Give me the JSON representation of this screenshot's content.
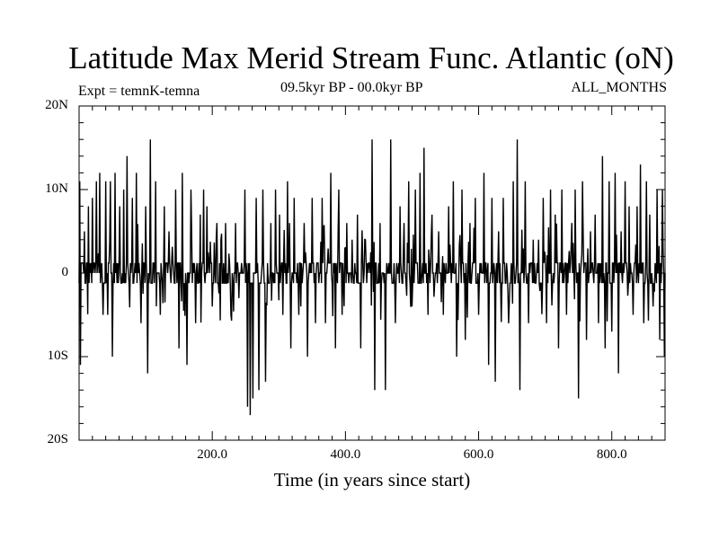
{
  "chart_data": {
    "type": "line",
    "title": "Latitude Max Merid Stream Func. Atlantic (oN)",
    "subtitle_left": "Expt = temnK-temna",
    "subtitle_center": "09.5kyr BP - 00.0kyr BP",
    "subtitle_right": "ALL_MONTHS",
    "xlabel": "Time (in years since start)",
    "ylabel": "",
    "xlim": [
      0,
      880
    ],
    "ylim": [
      -20,
      20
    ],
    "x_ticks": [
      200,
      400,
      600,
      800
    ],
    "x_tick_labels": [
      "200.0",
      "400.0",
      "600.0",
      "800.0"
    ],
    "y_ticks": [
      20,
      10,
      0,
      -10,
      -20
    ],
    "y_tick_labels": [
      "20N",
      "10N",
      "0",
      "10S",
      "20S"
    ],
    "grid": false,
    "legend": "none",
    "series": [
      {
        "color": "#000000",
        "peaks": [
          [
            1,
            11
          ],
          [
            2,
            -11
          ],
          [
            8,
            5
          ],
          [
            14,
            8
          ],
          [
            20,
            9
          ],
          [
            26,
            11
          ],
          [
            31,
            12
          ],
          [
            36,
            -5
          ],
          [
            40,
            11
          ],
          [
            43,
            -5
          ],
          [
            47,
            11
          ],
          [
            50,
            -10
          ],
          [
            54,
            12
          ],
          [
            61,
            8
          ],
          [
            67,
            10
          ],
          [
            72,
            14
          ],
          [
            80,
            9
          ],
          [
            86,
            12
          ],
          [
            93,
            -6
          ],
          [
            100,
            8
          ],
          [
            103,
            -12
          ],
          [
            107,
            16
          ],
          [
            115,
            11
          ],
          [
            122,
            -5
          ],
          [
            128,
            8
          ],
          [
            135,
            5
          ],
          [
            145,
            10
          ],
          [
            150,
            -9
          ],
          [
            155,
            12
          ],
          [
            162,
            -11
          ],
          [
            168,
            10
          ],
          [
            175,
            -6
          ],
          [
            182,
            7
          ],
          [
            187,
            10
          ],
          [
            192,
            8
          ],
          [
            200,
            -4
          ],
          [
            207,
            6
          ],
          [
            213,
            4
          ],
          [
            220,
            6
          ],
          [
            228,
            -5
          ],
          [
            235,
            6
          ],
          [
            240,
            -3
          ],
          [
            249,
            10
          ],
          [
            253,
            -16
          ],
          [
            257,
            -17
          ],
          [
            261,
            -15
          ],
          [
            266,
            9
          ],
          [
            270,
            -14
          ],
          [
            276,
            10
          ],
          [
            280,
            -13
          ],
          [
            288,
            6
          ],
          [
            295,
            10
          ],
          [
            301,
            7
          ],
          [
            306,
            -5
          ],
          [
            313,
            11
          ],
          [
            318,
            -9
          ],
          [
            323,
            9
          ],
          [
            330,
            -5
          ],
          [
            338,
            6
          ],
          [
            343,
            -10
          ],
          [
            350,
            9
          ],
          [
            355,
            -6
          ],
          [
            365,
            9
          ],
          [
            370,
            -6
          ],
          [
            378,
            12
          ],
          [
            385,
            -9
          ],
          [
            390,
            10
          ],
          [
            395,
            -5
          ],
          [
            402,
            6
          ],
          [
            410,
            4
          ],
          [
            418,
            7
          ],
          [
            423,
            -9
          ],
          [
            430,
            4
          ],
          [
            440,
            16
          ],
          [
            444,
            -14
          ],
          [
            452,
            6
          ],
          [
            460,
            -14
          ],
          [
            468,
            16
          ],
          [
            475,
            -6
          ],
          [
            482,
            8
          ],
          [
            488,
            6
          ],
          [
            495,
            11
          ],
          [
            500,
            -4
          ],
          [
            505,
            10
          ],
          [
            512,
            12
          ],
          [
            518,
            15
          ],
          [
            524,
            -5
          ],
          [
            530,
            7
          ],
          [
            540,
            5
          ],
          [
            547,
            -5
          ],
          [
            555,
            8
          ],
          [
            562,
            11
          ],
          [
            567,
            -10
          ],
          [
            575,
            10
          ],
          [
            580,
            -8
          ],
          [
            587,
            6
          ],
          [
            595,
            9
          ],
          [
            600,
            -5
          ],
          [
            608,
            12
          ],
          [
            615,
            -11
          ],
          [
            620,
            9
          ],
          [
            625,
            -13
          ],
          [
            630,
            5
          ],
          [
            637,
            9
          ],
          [
            645,
            -6
          ],
          [
            652,
            11
          ],
          [
            658,
            16
          ],
          [
            662,
            -14
          ],
          [
            670,
            11
          ],
          [
            675,
            -6
          ],
          [
            682,
            4
          ],
          [
            690,
            4
          ],
          [
            697,
            9
          ],
          [
            702,
            -6
          ],
          [
            708,
            10
          ],
          [
            715,
            7
          ],
          [
            720,
            -9
          ],
          [
            725,
            10
          ],
          [
            732,
            -5
          ],
          [
            740,
            6
          ],
          [
            745,
            10
          ],
          [
            750,
            -15
          ],
          [
            756,
            11
          ],
          [
            762,
            -8
          ],
          [
            768,
            5
          ],
          [
            775,
            7
          ],
          [
            780,
            -6
          ],
          [
            786,
            14
          ],
          [
            790,
            -9
          ],
          [
            796,
            11
          ],
          [
            800,
            -7
          ],
          [
            805,
            12
          ],
          [
            810,
            -12
          ],
          [
            814,
            5
          ],
          [
            820,
            11
          ],
          [
            826,
            8
          ],
          [
            832,
            -5
          ],
          [
            838,
            8
          ],
          [
            843,
            13
          ],
          [
            848,
            -6
          ],
          [
            852,
            11
          ],
          [
            857,
            7
          ],
          [
            862,
            -4
          ],
          [
            868,
            10
          ],
          [
            872,
            -8
          ],
          [
            876,
            10
          ],
          [
            879,
            -10
          ]
        ]
      }
    ]
  }
}
